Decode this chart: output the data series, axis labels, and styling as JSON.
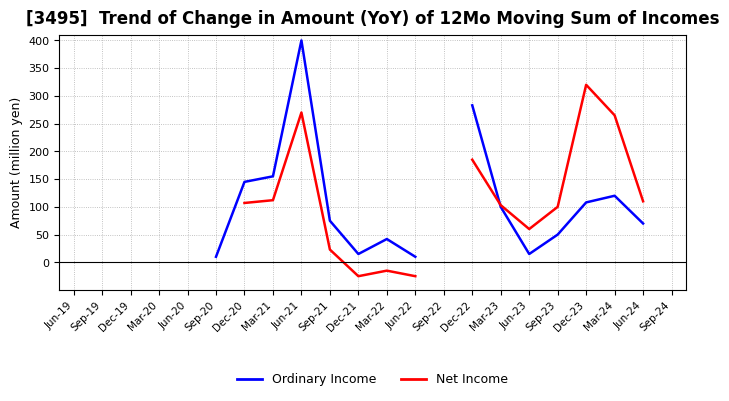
{
  "title": "[3495]  Trend of Change in Amount (YoY) of 12Mo Moving Sum of Incomes",
  "ylabel": "Amount (million yen)",
  "x_labels": [
    "Jun-19",
    "Sep-19",
    "Dec-19",
    "Mar-20",
    "Jun-20",
    "Sep-20",
    "Dec-20",
    "Mar-21",
    "Jun-21",
    "Sep-21",
    "Dec-21",
    "Mar-22",
    "Jun-22",
    "Sep-22",
    "Dec-22",
    "Mar-23",
    "Jun-23",
    "Sep-23",
    "Dec-23",
    "Mar-24",
    "Jun-24",
    "Sep-24"
  ],
  "ordinary_income": [
    null,
    null,
    null,
    null,
    null,
    10,
    145,
    155,
    400,
    75,
    15,
    42,
    10,
    null,
    283,
    100,
    15,
    50,
    108,
    120,
    70,
    null
  ],
  "net_income": [
    null,
    null,
    null,
    null,
    null,
    null,
    107,
    112,
    270,
    23,
    -25,
    -15,
    -25,
    null,
    185,
    103,
    60,
    100,
    320,
    265,
    110,
    null
  ],
  "ordinary_color": "#0000ff",
  "net_color": "#ff0000",
  "ylim": [
    -50,
    410
  ],
  "yticks": [
    0,
    50,
    100,
    150,
    200,
    250,
    300,
    350,
    400
  ],
  "bg_color": "#ffffff",
  "grid_color": "#b0b0b0",
  "title_fontsize": 12,
  "legend_labels": [
    "Ordinary Income",
    "Net Income"
  ],
  "line_width": 1.8
}
